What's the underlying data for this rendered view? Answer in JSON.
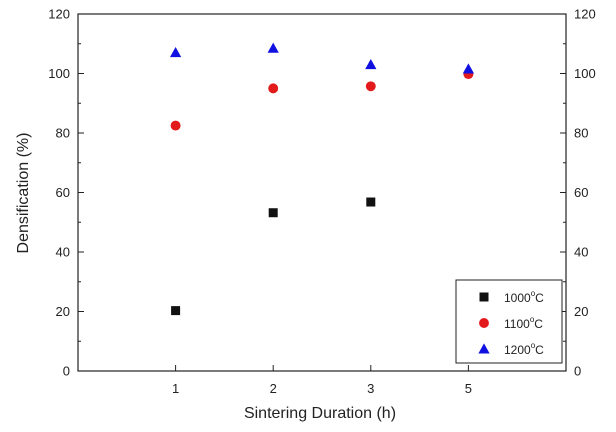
{
  "chart_data": {
    "type": "scatter",
    "title": "",
    "xlabel": "Sintering Duration (h)",
    "ylabel": "Densification (%)",
    "categories": [
      "1",
      "2",
      "3",
      "5"
    ],
    "ylim": [
      0,
      120
    ],
    "yticks": [
      0,
      20,
      40,
      60,
      80,
      100,
      120
    ],
    "right_axis_ticks": true,
    "grid": false,
    "legend_position": "bottom-right",
    "series": [
      {
        "name": "1000",
        "unit_sup": "o",
        "unit": "C",
        "marker": "square",
        "color": "#111111",
        "values": [
          20.3,
          53.2,
          56.8,
          null
        ]
      },
      {
        "name": "1100",
        "unit_sup": "o",
        "unit": "C",
        "marker": "circle",
        "color": "#e31a1c",
        "values": [
          82.5,
          95.0,
          95.7,
          99.8
        ]
      },
      {
        "name": "1200",
        "unit_sup": "o",
        "unit": "C",
        "marker": "triangle",
        "color": "#1010e0",
        "values": [
          107.0,
          108.5,
          103.0,
          101.5
        ]
      }
    ]
  }
}
